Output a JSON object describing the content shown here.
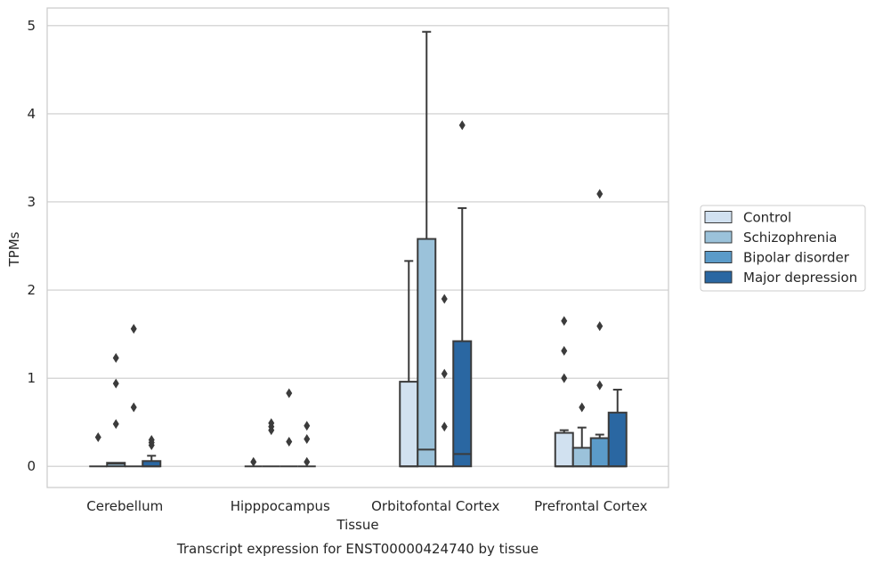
{
  "chart_data": {
    "type": "boxplot",
    "title": "Transcript expression for ENST00000424740 by tissue",
    "xlabel": "Tissue",
    "ylabel": "TPMs",
    "ylim": [
      -0.24,
      5.2
    ],
    "yticks": [
      0,
      1,
      2,
      3,
      4,
      5
    ],
    "grid": "horizontal",
    "legend_position": "right-center",
    "categories": [
      "Cerebellum",
      "Hipppocampus",
      "Orbitofontal Cortex",
      "Prefrontal Cortex"
    ],
    "series": [
      {
        "name": "Control",
        "color": "#d1e1f0",
        "boxes": [
          {
            "whislo": 0,
            "q1": 0,
            "med": 0,
            "q3": 0,
            "whishi": 0,
            "fliers": [
              0.33
            ]
          },
          {
            "whislo": 0,
            "q1": 0,
            "med": 0,
            "q3": 0,
            "whishi": 0,
            "fliers": [
              0.05
            ]
          },
          {
            "whislo": 0,
            "q1": 0,
            "med": 0,
            "q3": 0.96,
            "whishi": 2.33,
            "fliers": []
          },
          {
            "whislo": 0,
            "q1": 0,
            "med": 0,
            "q3": 0.38,
            "whishi": 0.41,
            "fliers": [
              1.0,
              1.31,
              1.65
            ]
          }
        ]
      },
      {
        "name": "Schizophrenia",
        "color": "#9bc2da",
        "boxes": [
          {
            "whislo": 0,
            "q1": 0,
            "med": 0.03,
            "q3": 0.04,
            "whishi": 0.04,
            "fliers": [
              0.48,
              0.94,
              1.23
            ]
          },
          {
            "whislo": 0,
            "q1": 0,
            "med": 0,
            "q3": 0,
            "whishi": 0,
            "fliers": [
              0.41,
              0.45,
              0.49
            ]
          },
          {
            "whislo": 0,
            "q1": 0,
            "med": 0.19,
            "q3": 2.58,
            "whishi": 4.93,
            "fliers": []
          },
          {
            "whislo": 0,
            "q1": 0,
            "med": 0,
            "q3": 0.21,
            "whishi": 0.44,
            "fliers": [
              0.67
            ]
          }
        ]
      },
      {
        "name": "Bipolar disorder",
        "color": "#5b9bc9",
        "boxes": [
          {
            "whislo": 0,
            "q1": 0,
            "med": 0,
            "q3": 0,
            "whishi": 0,
            "fliers": [
              0.67,
              1.56
            ]
          },
          {
            "whislo": 0,
            "q1": 0,
            "med": 0,
            "q3": 0,
            "whishi": 0,
            "fliers": [
              0.28,
              0.83
            ]
          },
          {
            "whislo": 0,
            "q1": 0,
            "med": 0,
            "q3": 0,
            "whishi": 0,
            "fliers": [
              0.45,
              1.05,
              1.9
            ]
          },
          {
            "whislo": 0,
            "q1": 0,
            "med": 0,
            "q3": 0.32,
            "whishi": 0.36,
            "fliers": [
              0.92,
              1.59,
              3.09
            ]
          }
        ]
      },
      {
        "name": "Major depression",
        "color": "#2a67a2",
        "boxes": [
          {
            "whislo": 0,
            "q1": 0,
            "med": 0,
            "q3": 0.06,
            "whishi": 0.12,
            "fliers": [
              0.24,
              0.27,
              0.3
            ]
          },
          {
            "whislo": 0,
            "q1": 0,
            "med": 0,
            "q3": 0,
            "whishi": 0,
            "fliers": [
              0.05,
              0.31,
              0.46
            ]
          },
          {
            "whislo": 0,
            "q1": 0,
            "med": 0.14,
            "q3": 1.42,
            "whishi": 2.93,
            "fliers": [
              3.87
            ]
          },
          {
            "whislo": 0,
            "q1": 0,
            "med": 0,
            "q3": 0.61,
            "whishi": 0.87,
            "fliers": []
          }
        ]
      }
    ]
  }
}
